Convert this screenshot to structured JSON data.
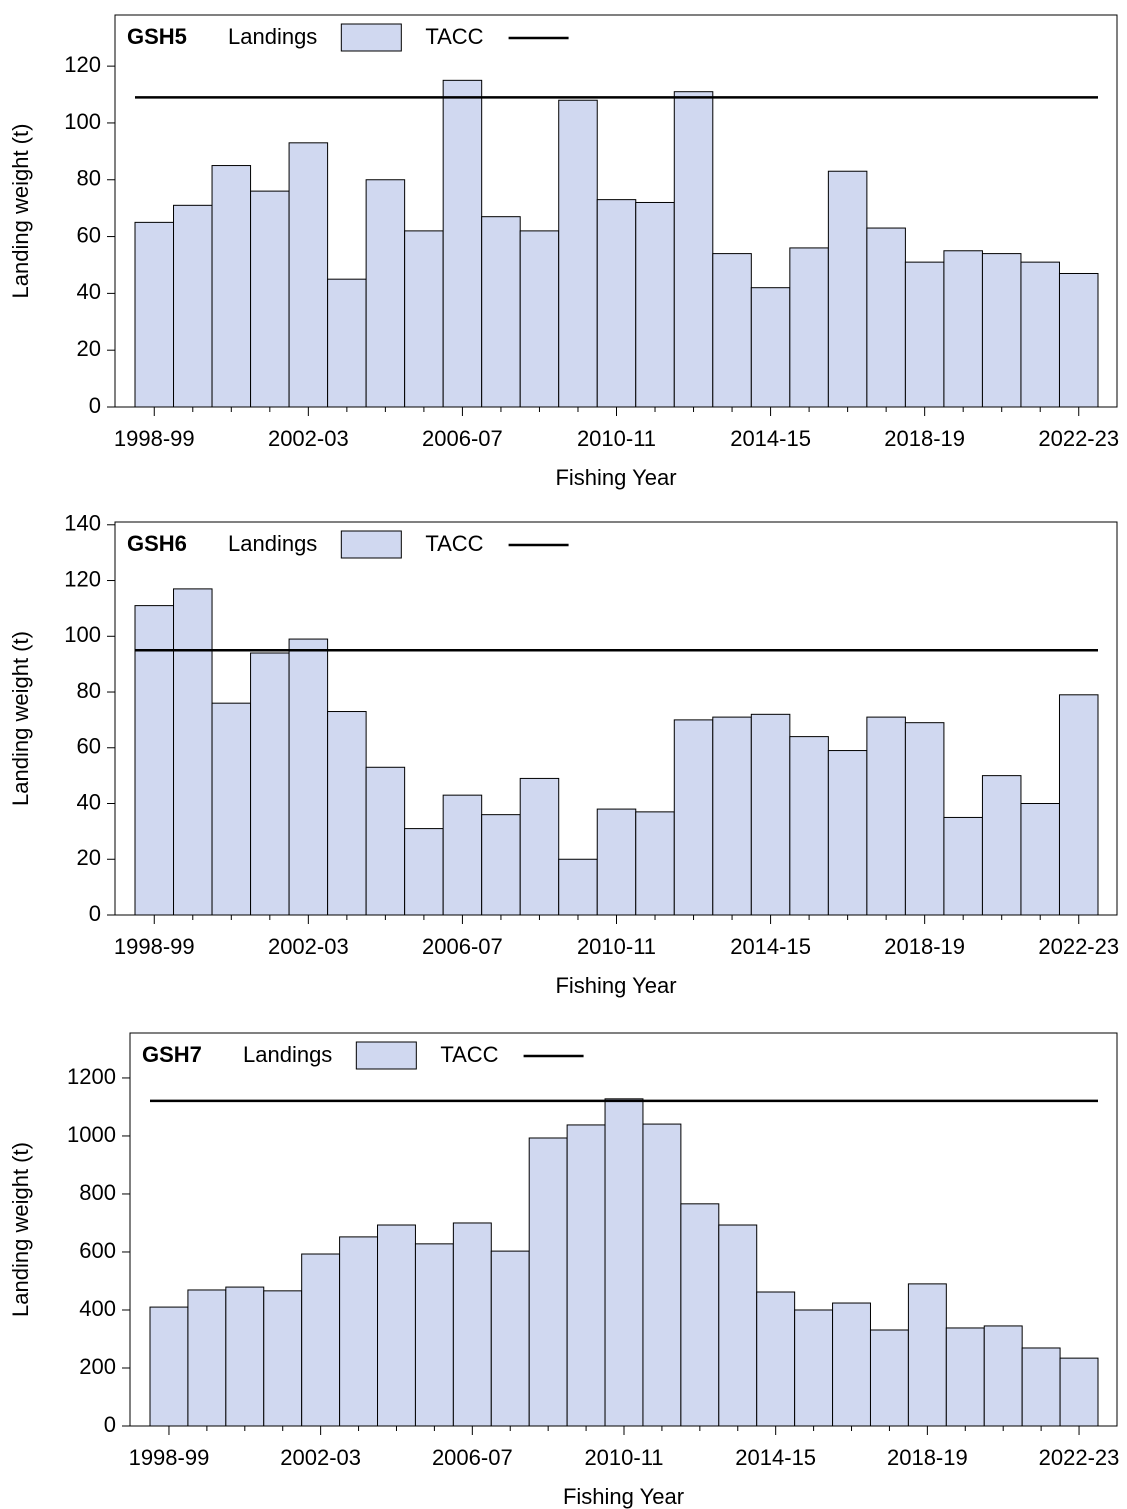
{
  "chart_data": [
    {
      "type": "bar",
      "title": "GSH5",
      "x_label": "Fishing Year",
      "y_label": "Landing weight (t)",
      "categories": [
        "1998-99",
        null,
        null,
        null,
        "2002-03",
        null,
        null,
        null,
        "2006-07",
        null,
        null,
        null,
        "2010-11",
        null,
        null,
        null,
        "2014-15",
        null,
        null,
        null,
        "2018-19",
        null,
        null,
        null,
        "2022-23"
      ],
      "series": [
        {
          "name": "Landings",
          "color": "#d0d8f0",
          "values": [
            65,
            71,
            85,
            76,
            93,
            45,
            80,
            62,
            115,
            67,
            62,
            108,
            73,
            72,
            111,
            54,
            42,
            56,
            83,
            63,
            51,
            55,
            54,
            51,
            47
          ]
        }
      ],
      "lines": [
        {
          "name": "TACC",
          "color": "#000000",
          "value": 109
        }
      ],
      "ylim": [
        0,
        138
      ],
      "yticks": [
        0,
        20,
        40,
        60,
        80,
        100,
        120
      ]
    },
    {
      "type": "bar",
      "title": "GSH6",
      "x_label": "Fishing Year",
      "y_label": "Landing weight (t)",
      "categories": [
        "1998-99",
        null,
        null,
        null,
        "2002-03",
        null,
        null,
        null,
        "2006-07",
        null,
        null,
        null,
        "2010-11",
        null,
        null,
        null,
        "2014-15",
        null,
        null,
        null,
        "2018-19",
        null,
        null,
        null,
        "2022-23"
      ],
      "series": [
        {
          "name": "Landings",
          "color": "#d0d8f0",
          "values": [
            111,
            117,
            76,
            94,
            99,
            73,
            53,
            31,
            43,
            36,
            49,
            20,
            38,
            37,
            70,
            71,
            72,
            64,
            59,
            71,
            69,
            35,
            50,
            40,
            79
          ]
        }
      ],
      "lines": [
        {
          "name": "TACC",
          "color": "#000000",
          "value": 95
        }
      ],
      "ylim": [
        0,
        141
      ],
      "yticks": [
        0,
        20,
        40,
        60,
        80,
        100,
        120,
        140
      ]
    },
    {
      "type": "bar",
      "title": "GSH7",
      "x_label": "Fishing Year",
      "y_label": "Landing weight (t)",
      "categories": [
        "1998-99",
        null,
        null,
        null,
        "2002-03",
        null,
        null,
        null,
        "2006-07",
        null,
        null,
        null,
        "2010-11",
        null,
        null,
        null,
        "2014-15",
        null,
        null,
        null,
        "2018-19",
        null,
        null,
        null,
        "2022-23"
      ],
      "series": [
        {
          "name": "Landings",
          "color": "#d0d8f0",
          "values": [
            410,
            469,
            479,
            466,
            593,
            652,
            693,
            628,
            700,
            603,
            993,
            1038,
            1128,
            1041,
            766,
            693,
            462,
            400,
            424,
            331,
            490,
            338,
            345,
            269,
            234
          ]
        }
      ],
      "lines": [
        {
          "name": "TACC",
          "color": "#000000",
          "value": 1121
        }
      ],
      "ylim": [
        0,
        1355
      ],
      "yticks": [
        0,
        200,
        400,
        600,
        800,
        1000,
        1200
      ]
    }
  ]
}
